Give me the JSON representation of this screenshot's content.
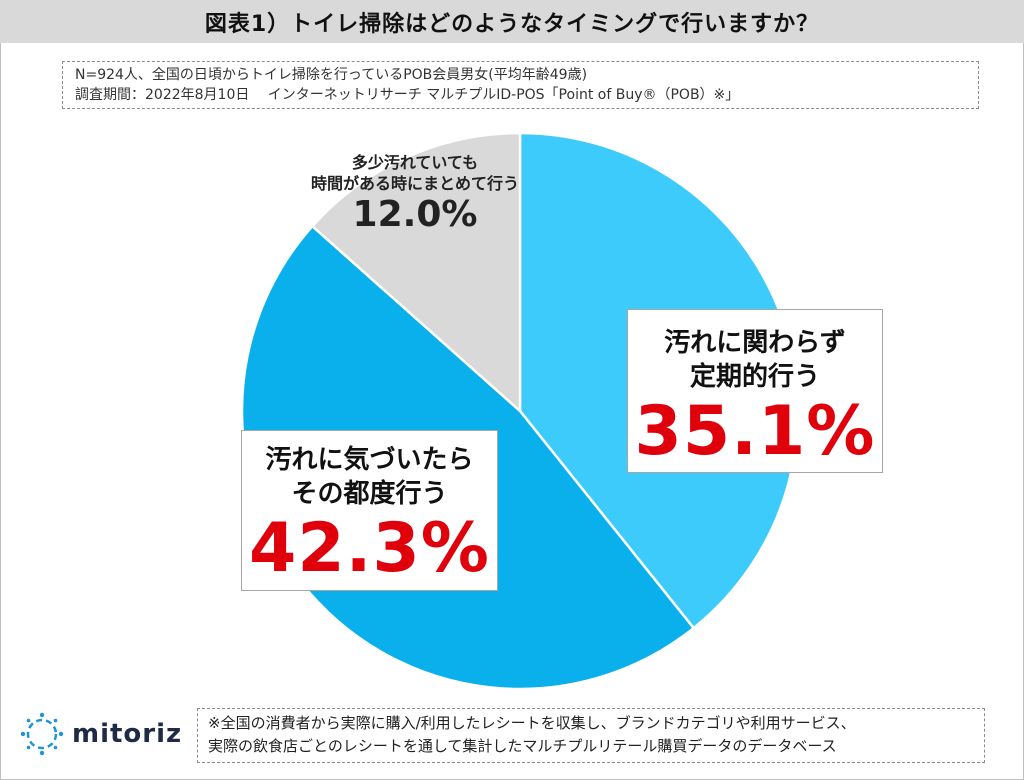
{
  "title": "図表1）トイレ掃除はどのようなタイミングで行いますか？",
  "meta": {
    "line1": "N=924人、全国の日頃からトイレ掃除を行っているPOB会員男女(平均年齢49歳)",
    "line2": "調査期間：2022年8月10日　 インターネットリサーチ マルチプルID-POS「Point of Buy®（POB）※」"
  },
  "chart_data": {
    "type": "pie",
    "start": "12 o'clock",
    "direction": "clockwise",
    "slices": [
      {
        "label": "汚れに関わらず定期的行う",
        "value": 35.1,
        "value_label": "35.1%",
        "color": "#3ccbfa"
      },
      {
        "label": "汚れに気づいたらその都度行う",
        "value": 42.3,
        "value_label": "42.3%",
        "color": "#0ab0ec"
      },
      {
        "label": "多少汚れていても時間がある時にまとめて行う",
        "value": 12.0,
        "value_label": "12.0%",
        "color": "#d9d9d9"
      }
    ],
    "labels": {
      "regular": {
        "line1": "汚れに関わらず",
        "line2": "定期的行う",
        "pct": "35.1%"
      },
      "each_time": {
        "line1": "汚れに気づいたら",
        "line2": "その都度行う",
        "pct": "42.3%"
      },
      "spare_time": {
        "line1": "多少汚れていても",
        "line2": "時間がある時にまとめて行う",
        "pct": "12.0%"
      }
    }
  },
  "logo": {
    "text": "mitoriz"
  },
  "note": {
    "line1": "※全国の消費者から実際に購入/利用したレシートを収集し、ブランドカテゴリや利用サービス、",
    "line2": "実際の飲食店ごとのレシートを通して集計したマルチプルリテール購買データのデータベース"
  }
}
